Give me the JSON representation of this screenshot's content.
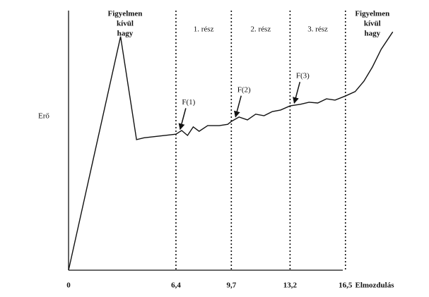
{
  "chart_data": {
    "type": "line",
    "x_label": "Elmozdulás",
    "y_label": "Erő",
    "xlim": [
      0,
      19.5
    ],
    "ylim": [
      0,
      100
    ],
    "xticks": [
      0,
      {
        "value": 6.4,
        "label": "6,4"
      },
      {
        "value": 9.7,
        "label": "9,7"
      },
      {
        "value": 13.2,
        "label": "13,2"
      },
      {
        "value": 16.5,
        "label": "16,5"
      }
    ],
    "ignored_label": [
      "Figyelmen",
      "kívül",
      "hagy"
    ],
    "sections": [
      "1. rész",
      "2. rész",
      "3. rész"
    ],
    "force_points": [
      "F(1)",
      "F(2)",
      "F(3)"
    ],
    "color": "#111111",
    "x": [
      0,
      3.1,
      4.05,
      4.5,
      6.4,
      6.74,
      7.09,
      7.43,
      7.78,
      8.29,
      8.98,
      9.49,
      9.7,
      10.16,
      10.66,
      11.15,
      11.65,
      12.14,
      12.64,
      13.2,
      13.82,
      14.33,
      14.85,
      15.37,
      15.88,
      16.5,
      17.08,
      17.6,
      18.11,
      18.63,
      19.32
    ],
    "values": [
      0,
      90,
      50.3,
      51,
      52.4,
      53.8,
      51.9,
      55.2,
      53.5,
      55.7,
      55.7,
      56.2,
      57.3,
      59.0,
      57.9,
      60.1,
      59.5,
      61.1,
      61.7,
      63.3,
      63.9,
      64.7,
      64.4,
      66.0,
      65.5,
      67.1,
      68.8,
      72.8,
      78.3,
      85.1,
      91.8
    ]
  }
}
